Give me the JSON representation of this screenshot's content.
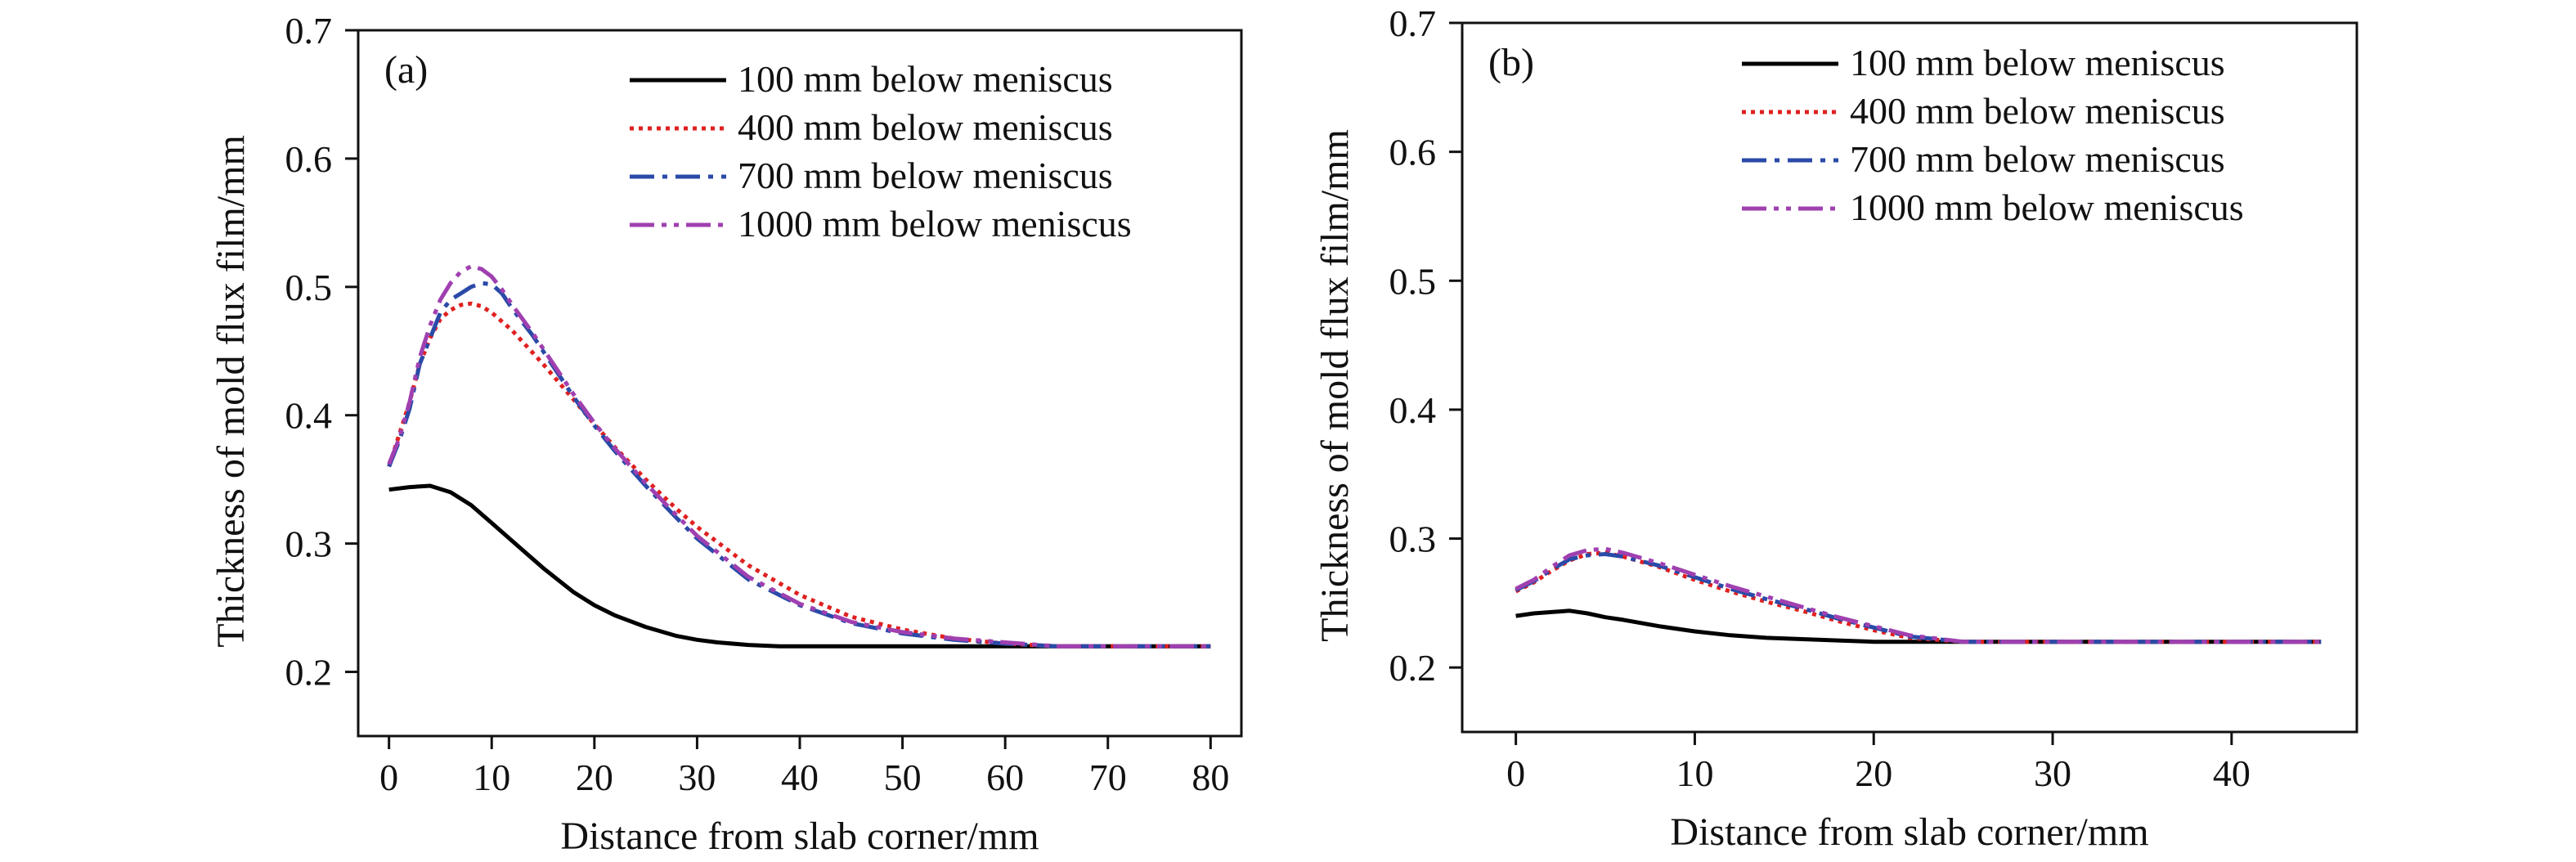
{
  "chart_data": [
    {
      "type": "line",
      "panel_label": "(a)",
      "xlabel": "Distance from slab corner/mm",
      "ylabel": "Thickness of mold flux film/mm",
      "xlim": [
        -3,
        83
      ],
      "ylim": [
        0.15,
        0.7
      ],
      "xticks": [
        0,
        10,
        20,
        30,
        40,
        50,
        60,
        70,
        80
      ],
      "xtick_labels": [
        "0",
        "10",
        "20",
        "30",
        "40",
        "50",
        "60",
        "70",
        "80"
      ],
      "yticks": [
        0.2,
        0.3,
        0.4,
        0.5,
        0.6,
        0.7
      ],
      "ytick_labels": [
        "0.2",
        "0.3",
        "0.4",
        "0.5",
        "0.6",
        "0.7"
      ],
      "grid": false,
      "legend_position": "top-right",
      "series": [
        {
          "name": "100 mm below meniscus",
          "color": "#000000",
          "dash": "solid",
          "x": [
            0,
            2,
            4,
            6,
            8,
            10,
            12,
            15,
            18,
            20,
            22,
            25,
            28,
            30,
            32,
            35,
            38,
            40,
            45,
            50,
            55,
            60,
            65,
            70,
            75,
            80
          ],
          "y": [
            0.342,
            0.344,
            0.345,
            0.34,
            0.33,
            0.316,
            0.302,
            0.281,
            0.262,
            0.252,
            0.244,
            0.235,
            0.228,
            0.225,
            0.223,
            0.221,
            0.22,
            0.22,
            0.22,
            0.22,
            0.22,
            0.22,
            0.22,
            0.22,
            0.22,
            0.22
          ]
        },
        {
          "name": "400 mm below meniscus",
          "color": "#e02020",
          "dash": "dotted",
          "x": [
            0,
            1,
            2,
            3,
            4,
            5,
            6,
            7,
            8,
            9,
            10,
            12,
            15,
            18,
            20,
            22,
            25,
            28,
            30,
            35,
            40,
            45,
            50,
            55,
            60,
            65,
            70,
            75,
            80
          ],
          "y": [
            0.36,
            0.385,
            0.41,
            0.44,
            0.46,
            0.475,
            0.482,
            0.486,
            0.487,
            0.485,
            0.48,
            0.466,
            0.44,
            0.412,
            0.393,
            0.375,
            0.35,
            0.327,
            0.313,
            0.283,
            0.26,
            0.243,
            0.233,
            0.226,
            0.222,
            0.22,
            0.22,
            0.22,
            0.22
          ]
        },
        {
          "name": "700 mm below meniscus",
          "color": "#2a4aa8",
          "dash": "dashdot",
          "x": [
            0,
            1,
            2,
            3,
            4,
            5,
            6,
            7,
            8,
            9,
            10,
            11,
            12,
            14,
            16,
            18,
            20,
            22,
            25,
            28,
            30,
            35,
            40,
            45,
            50,
            55,
            60,
            65,
            70,
            75,
            80
          ],
          "y": [
            0.36,
            0.38,
            0.405,
            0.44,
            0.46,
            0.48,
            0.49,
            0.495,
            0.5,
            0.503,
            0.502,
            0.495,
            0.483,
            0.462,
            0.438,
            0.414,
            0.392,
            0.372,
            0.345,
            0.32,
            0.304,
            0.272,
            0.252,
            0.238,
            0.23,
            0.225,
            0.222,
            0.22,
            0.22,
            0.22,
            0.22
          ]
        },
        {
          "name": "1000 mm below meniscus",
          "color": "#a040b0",
          "dash": "dashdotdot",
          "x": [
            0,
            1,
            2,
            3,
            4,
            5,
            6,
            7,
            8,
            9,
            10,
            11,
            12,
            14,
            16,
            18,
            20,
            22,
            25,
            28,
            30,
            35,
            40,
            45,
            50,
            55,
            60,
            65,
            70,
            75,
            80
          ],
          "y": [
            0.362,
            0.382,
            0.41,
            0.445,
            0.47,
            0.49,
            0.503,
            0.512,
            0.516,
            0.514,
            0.508,
            0.498,
            0.486,
            0.464,
            0.44,
            0.416,
            0.394,
            0.374,
            0.347,
            0.322,
            0.306,
            0.274,
            0.253,
            0.239,
            0.231,
            0.226,
            0.223,
            0.22,
            0.22,
            0.22,
            0.22
          ]
        }
      ]
    },
    {
      "type": "line",
      "panel_label": "(b)",
      "xlabel": "Distance from slab corner/mm",
      "ylabel": "Thickness of mold flux film/mm",
      "xlim": [
        -3,
        47
      ],
      "ylim": [
        0.15,
        0.7
      ],
      "xticks": [
        0,
        10,
        20,
        30,
        40
      ],
      "xtick_labels": [
        "0",
        "10",
        "20",
        "30",
        "40"
      ],
      "yticks": [
        0.2,
        0.3,
        0.4,
        0.5,
        0.6,
        0.7
      ],
      "ytick_labels": [
        "0.2",
        "0.3",
        "0.4",
        "0.5",
        "0.6",
        "0.7"
      ],
      "grid": false,
      "legend_position": "top-right",
      "series": [
        {
          "name": "100 mm below meniscus",
          "color": "#000000",
          "dash": "solid",
          "x": [
            0,
            1,
            2,
            3,
            4,
            5,
            6,
            8,
            10,
            12,
            14,
            16,
            18,
            20,
            22,
            25,
            30,
            35,
            40,
            45
          ],
          "y": [
            0.24,
            0.242,
            0.243,
            0.244,
            0.242,
            0.239,
            0.237,
            0.232,
            0.228,
            0.225,
            0.223,
            0.222,
            0.221,
            0.22,
            0.22,
            0.22,
            0.22,
            0.22,
            0.22,
            0.22
          ]
        },
        {
          "name": "400 mm below meniscus",
          "color": "#e02020",
          "dash": "dotted",
          "x": [
            0,
            1,
            2,
            3,
            4,
            5,
            6,
            8,
            10,
            12,
            14,
            16,
            18,
            20,
            22,
            25,
            30,
            35,
            40,
            45
          ],
          "y": [
            0.259,
            0.266,
            0.275,
            0.283,
            0.288,
            0.289,
            0.286,
            0.278,
            0.268,
            0.259,
            0.251,
            0.244,
            0.236,
            0.229,
            0.223,
            0.22,
            0.22,
            0.22,
            0.22,
            0.22
          ]
        },
        {
          "name": "700 mm below meniscus",
          "color": "#2a4aa8",
          "dash": "dashdot",
          "x": [
            0,
            1,
            2,
            3,
            4,
            5,
            6,
            8,
            10,
            12,
            14,
            16,
            18,
            20,
            22,
            25,
            30,
            35,
            40,
            45
          ],
          "y": [
            0.26,
            0.267,
            0.276,
            0.284,
            0.287,
            0.288,
            0.286,
            0.279,
            0.27,
            0.261,
            0.253,
            0.246,
            0.238,
            0.231,
            0.224,
            0.22,
            0.22,
            0.22,
            0.22,
            0.22
          ]
        },
        {
          "name": "1000 mm below meniscus",
          "color": "#a040b0",
          "dash": "dashdotdot",
          "x": [
            0,
            1,
            2,
            3,
            4,
            5,
            6,
            8,
            10,
            12,
            14,
            16,
            18,
            20,
            22,
            25,
            30,
            35,
            40,
            45
          ],
          "y": [
            0.261,
            0.268,
            0.278,
            0.287,
            0.291,
            0.292,
            0.289,
            0.281,
            0.272,
            0.263,
            0.255,
            0.247,
            0.239,
            0.232,
            0.225,
            0.22,
            0.22,
            0.22,
            0.22,
            0.22
          ]
        }
      ]
    }
  ]
}
